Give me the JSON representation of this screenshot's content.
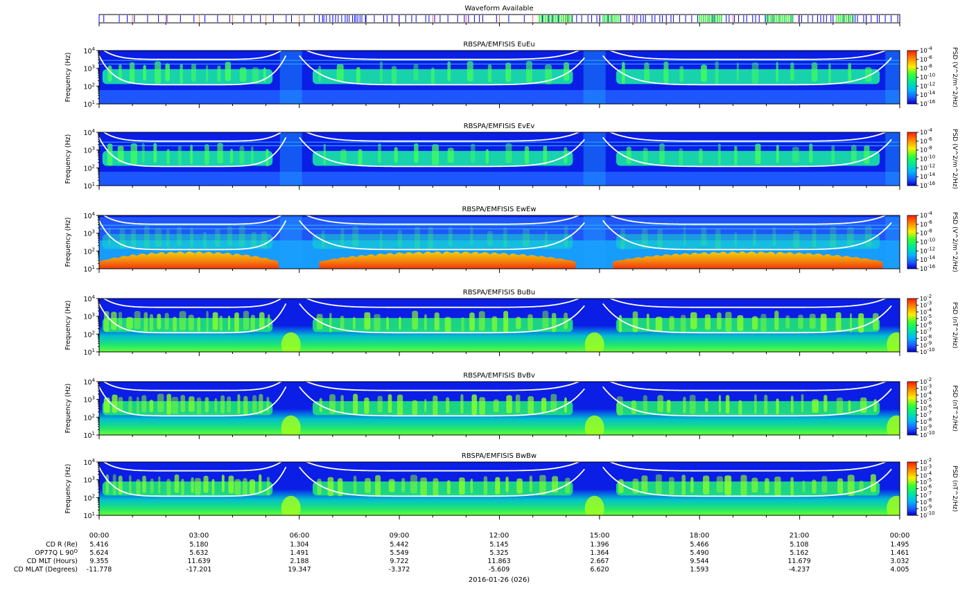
{
  "waveform": {
    "title": "Waveform Available",
    "colors": {
      "tick": "#0000ff",
      "burst": "#33ff33",
      "grid": "#ff6666"
    }
  },
  "panels": [
    {
      "title": "RBSPA/EMFISIS  EuEu",
      "ylabel": "Frequency (Hz)",
      "cbar_label": "PSD (V^2/m^2/Hz)",
      "cbar_ticks": [
        "10^-4",
        "10^-6",
        "10^-8",
        "10^-10",
        "10^-12",
        "10^-14",
        "10^-16"
      ]
    },
    {
      "title": "RBSPA/EMFISIS  EvEv",
      "ylabel": "Frequency (Hz)",
      "cbar_label": "PSD (V^2/m^2/Hz)",
      "cbar_ticks": [
        "10^-4",
        "10^-6",
        "10^-8",
        "10^-10",
        "10^-12",
        "10^-14",
        "10^-16"
      ]
    },
    {
      "title": "RBSPA/EMFISIS  EwEw",
      "ylabel": "Frequency (Hz)",
      "cbar_label": "PSD (V^2/m^2/Hz)",
      "cbar_ticks": [
        "10^-4",
        "10^-6",
        "10^-8",
        "10^-10",
        "10^-12",
        "10^-14",
        "10^-16"
      ]
    },
    {
      "title": "RBSPA/EMFISIS  BuBu",
      "ylabel": "Frequency (Hz)",
      "cbar_label": "PSD (nT^2/Hz)",
      "cbar_ticks": [
        "10^-2",
        "10^-3",
        "10^-4",
        "10^-5",
        "10^-6",
        "10^-7",
        "10^-8",
        "10^-9",
        "10^-10"
      ]
    },
    {
      "title": "RBSPA/EMFISIS  BvBv",
      "ylabel": "Frequency (Hz)",
      "cbar_label": "PSD (nT^2/Hz)",
      "cbar_ticks": [
        "10^-2",
        "10^-3",
        "10^-4",
        "10^-5",
        "10^-6",
        "10^-7",
        "10^-8",
        "10^-9",
        "10^-10"
      ]
    },
    {
      "title": "RBSPA/EMFISIS  BwBw",
      "ylabel": "Frequency (Hz)",
      "cbar_label": "PSD (nT^2/Hz)",
      "cbar_ticks": [
        "10^-2",
        "10^-3",
        "10^-4",
        "10^-5",
        "10^-6",
        "10^-7",
        "10^-8",
        "10^-9",
        "10^-10"
      ]
    }
  ],
  "y_ticks": [
    "10^4",
    "10^3",
    "10^2",
    "10^1"
  ],
  "colors": {
    "background": "#0a1ee6",
    "curve": "#ffffff"
  },
  "x_ticks": [
    "00:00",
    "03:00",
    "06:00",
    "09:00",
    "12:00",
    "15:00",
    "18:00",
    "21:00",
    "00:00"
  ],
  "ephemeris": {
    "labels": [
      "CD R (Re)",
      "OP77Q L 90^O",
      "CD MLT (Hours)",
      "CD MLAT (Degrees)"
    ],
    "rows": [
      [
        "5.416",
        "5.180",
        "1.304",
        "5.442",
        "5.145",
        "1.396",
        "5.466",
        "5.108",
        "1.495"
      ],
      [
        "5.624",
        "5.632",
        "1.491",
        "5.549",
        "5.325",
        "1.364",
        "5.490",
        "5.162",
        "1.461"
      ],
      [
        "9.355",
        "11.639",
        "2.188",
        "9.722",
        "11.863",
        "2.667",
        "9.544",
        "11.679",
        "3.032"
      ],
      [
        "-11.778",
        "-17.201",
        "19.347",
        "-3.372",
        "-5.609",
        "6.620",
        "1.593",
        "-4.237",
        "4.005"
      ]
    ]
  },
  "date_label": "2016-01-26 (026)",
  "chart_data": [
    {
      "type": "heatmap",
      "title": "RBSPA/EMFISIS  EuEu",
      "xlabel": "",
      "ylabel": "Frequency (Hz)",
      "y_scale": "log",
      "ylim": [
        10,
        10000
      ],
      "xlim": [
        "00:00",
        "24:00"
      ],
      "z_scale": "log",
      "zlim": [
        1e-16,
        0.0001
      ]
    },
    {
      "type": "heatmap",
      "title": "RBSPA/EMFISIS  EvEv",
      "xlabel": "",
      "ylabel": "Frequency (Hz)",
      "y_scale": "log",
      "ylim": [
        10,
        10000
      ],
      "xlim": [
        "00:00",
        "24:00"
      ],
      "z_scale": "log",
      "zlim": [
        1e-16,
        0.0001
      ]
    },
    {
      "type": "heatmap",
      "title": "RBSPA/EMFISIS  EwEw",
      "xlabel": "",
      "ylabel": "Frequency (Hz)",
      "y_scale": "log",
      "ylim": [
        10,
        10000
      ],
      "xlim": [
        "00:00",
        "24:00"
      ],
      "z_scale": "log",
      "zlim": [
        1e-16,
        0.0001
      ]
    },
    {
      "type": "heatmap",
      "title": "RBSPA/EMFISIS  BuBu",
      "xlabel": "",
      "ylabel": "Frequency (Hz)",
      "y_scale": "log",
      "ylim": [
        10,
        10000
      ],
      "xlim": [
        "00:00",
        "24:00"
      ],
      "z_scale": "log",
      "zlim": [
        1e-10,
        0.01
      ]
    },
    {
      "type": "heatmap",
      "title": "RBSPA/EMFISIS  BvBv",
      "xlabel": "",
      "ylabel": "Frequency (Hz)",
      "y_scale": "log",
      "ylim": [
        10,
        10000
      ],
      "xlim": [
        "00:00",
        "24:00"
      ],
      "z_scale": "log",
      "zlim": [
        1e-10,
        0.01
      ]
    },
    {
      "type": "heatmap",
      "title": "RBSPA/EMFISIS  BwBw",
      "xlabel": "",
      "ylabel": "Frequency (Hz)",
      "y_scale": "log",
      "ylim": [
        10,
        10000
      ],
      "xlim": [
        "00:00",
        "24:00"
      ],
      "z_scale": "log",
      "zlim": [
        1e-10,
        0.01
      ]
    }
  ]
}
